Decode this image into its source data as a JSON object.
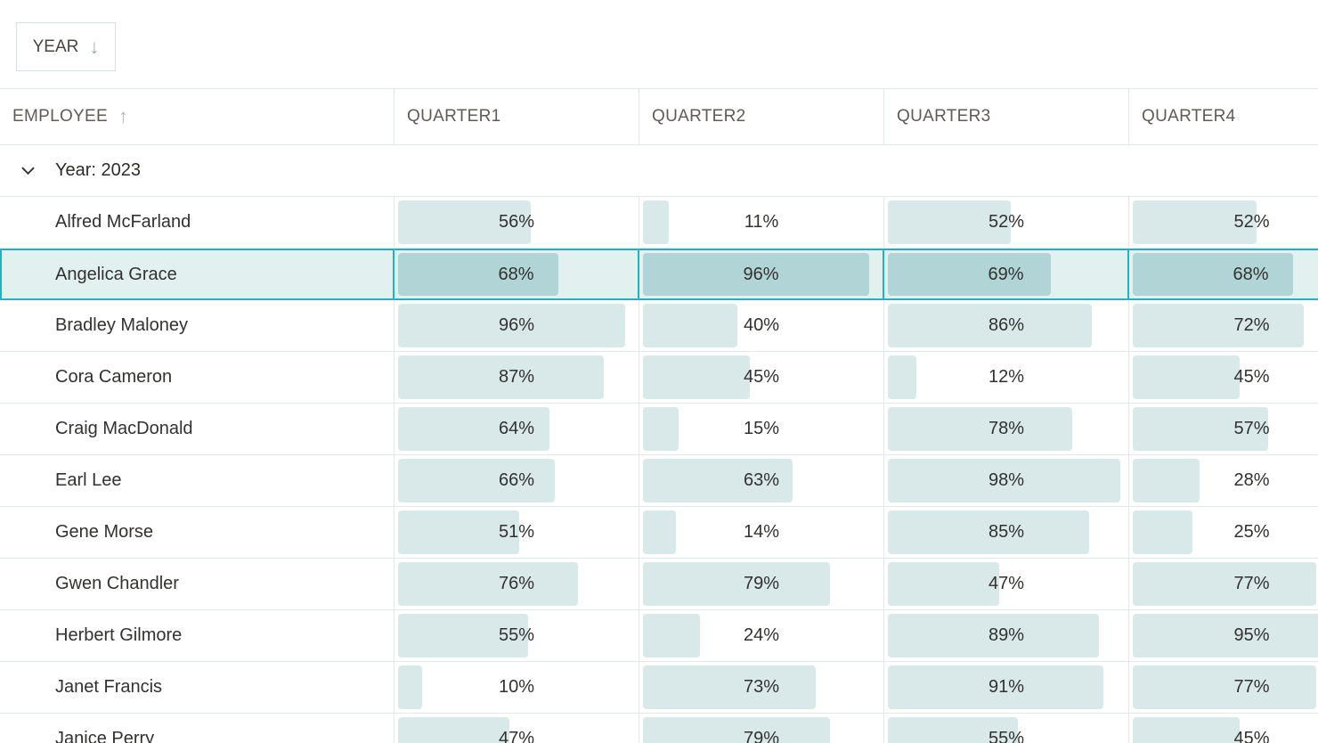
{
  "colors": {
    "accent": "#21b3bd",
    "bar": "#d9e8e8",
    "selected_bar": "#b1d5d6",
    "selected_row_bg": "#e2f1f0",
    "row_border": "#e3e8e9",
    "header_text": "#5f5b55",
    "cell_text": "#32312f"
  },
  "group_panel": {
    "chip_label": "YEAR",
    "chip_sort_icon": "arrow-down",
    "chip_sort_glyph": "↓"
  },
  "columns": [
    {
      "label": "EMPLOYEE",
      "sort": "asc",
      "sort_glyph": "↑"
    },
    {
      "label": "QUARTER1",
      "sort": null
    },
    {
      "label": "QUARTER2",
      "sort": null
    },
    {
      "label": "QUARTER3",
      "sort": null
    },
    {
      "label": "QUARTER4",
      "sort": null
    }
  ],
  "group_row": {
    "label": "Year: 2023",
    "expanded": true
  },
  "rows": [
    {
      "employee": "Alfred McFarland",
      "q1": 56,
      "q2": 11,
      "q3": 52,
      "q4": 52,
      "selected": false
    },
    {
      "employee": "Angelica Grace",
      "q1": 68,
      "q2": 96,
      "q3": 69,
      "q4": 68,
      "selected": true
    },
    {
      "employee": "Bradley Maloney",
      "q1": 96,
      "q2": 40,
      "q3": 86,
      "q4": 72,
      "selected": false
    },
    {
      "employee": "Cora Cameron",
      "q1": 87,
      "q2": 45,
      "q3": 12,
      "q4": 45,
      "selected": false
    },
    {
      "employee": "Craig MacDonald",
      "q1": 64,
      "q2": 15,
      "q3": 78,
      "q4": 57,
      "selected": false
    },
    {
      "employee": "Earl Lee",
      "q1": 66,
      "q2": 63,
      "q3": 98,
      "q4": 28,
      "selected": false
    },
    {
      "employee": "Gene Morse",
      "q1": 51,
      "q2": 14,
      "q3": 85,
      "q4": 25,
      "selected": false
    },
    {
      "employee": "Gwen Chandler",
      "q1": 76,
      "q2": 79,
      "q3": 47,
      "q4": 77,
      "selected": false
    },
    {
      "employee": "Herbert Gilmore",
      "q1": 55,
      "q2": 24,
      "q3": 89,
      "q4": 95,
      "selected": false
    },
    {
      "employee": "Janet Francis",
      "q1": 10,
      "q2": 73,
      "q3": 91,
      "q4": 77,
      "selected": false
    },
    {
      "employee": "Janice Perry",
      "q1": 47,
      "q2": 79,
      "q3": 55,
      "q4": 45,
      "selected": false
    }
  ]
}
